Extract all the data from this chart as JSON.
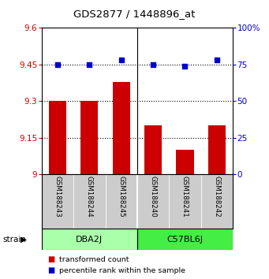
{
  "title": "GDS2877 / 1448896_at",
  "samples": [
    "GSM188243",
    "GSM188244",
    "GSM188245",
    "GSM188240",
    "GSM188241",
    "GSM188242"
  ],
  "bar_values": [
    9.3,
    9.3,
    9.38,
    9.2,
    9.1,
    9.2
  ],
  "percentile_values": [
    75,
    75,
    78,
    75,
    74,
    78
  ],
  "bar_color": "#cc0000",
  "percentile_color": "#0000cc",
  "ylim_left": [
    9.0,
    9.6
  ],
  "ylim_right": [
    0,
    100
  ],
  "yticks_left": [
    9.0,
    9.15,
    9.3,
    9.45,
    9.6
  ],
  "yticks_right": [
    0,
    25,
    50,
    75,
    100
  ],
  "ytick_labels_left": [
    "9",
    "9.15",
    "9.3",
    "9.45",
    "9.6"
  ],
  "ytick_labels_right": [
    "0",
    "25",
    "50",
    "75",
    "100%"
  ],
  "hlines": [
    9.15,
    9.3,
    9.45
  ],
  "group0_color": "#aaffaa",
  "group1_color": "#44ee44",
  "legend_items": [
    {
      "color": "#cc0000",
      "label": "transformed count"
    },
    {
      "color": "#0000cc",
      "label": "percentile rank within the sample"
    }
  ],
  "bar_width": 0.55,
  "background_color": "#ffffff",
  "sample_box_color": "#cccccc"
}
